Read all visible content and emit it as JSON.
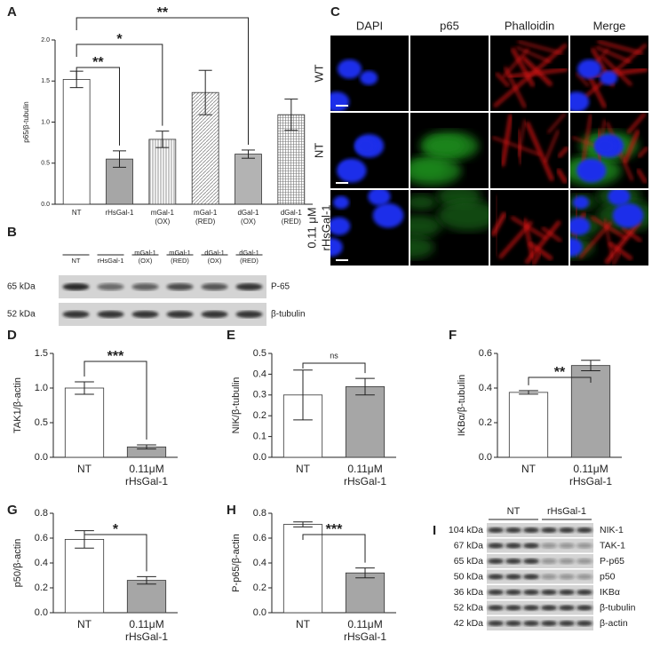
{
  "chart_data": [
    {
      "type": "bar",
      "label": "A",
      "y_label": "p65/β-tubulin",
      "categories": [
        [
          "NT"
        ],
        [
          "rHsGal-1"
        ],
        [
          "mGal-1",
          "(OX)"
        ],
        [
          "mGal-1",
          "(RED)"
        ],
        [
          "dGal-1",
          "(OX)"
        ],
        [
          "dGal-1",
          "(RED)"
        ]
      ],
      "values": [
        1.52,
        0.55,
        0.79,
        1.36,
        0.61,
        1.09
      ],
      "errors": [
        0.1,
        0.1,
        0.1,
        0.27,
        0.05,
        0.19
      ],
      "colors": [
        "#ffffff",
        "#a6a6a6",
        "#ffffff",
        "#ffffff",
        "#b3b3b3",
        "#ffffff"
      ],
      "patterns": [
        "none",
        "none",
        "vertical",
        "diagonal",
        "none",
        "grid"
      ],
      "ylim": [
        0,
        2.0
      ],
      "yticks": [
        {
          "value": 0,
          "label": "0.0"
        },
        0.5,
        {
          "value": 1,
          "label": "1.0"
        },
        1.5,
        {
          "value": 2,
          "label": "2.0"
        }
      ],
      "annotations": [
        {
          "text": "**",
          "between": [
            0,
            1
          ]
        },
        {
          "text": "*",
          "between": [
            0,
            2
          ]
        },
        {
          "text": "**",
          "between": [
            0,
            4
          ]
        }
      ]
    },
    {
      "type": "bar",
      "label": "D",
      "y_label": "TAK1/β-actin",
      "categories": [
        [
          "NT"
        ],
        [
          "0.11μM",
          "rHsGal-1"
        ]
      ],
      "values": [
        1.0,
        0.15
      ],
      "errors": [
        0.09,
        0.03
      ],
      "colors": [
        "#ffffff",
        "#a6a6a6"
      ],
      "patterns": [
        "none",
        "none"
      ],
      "ylim": [
        0,
        1.5
      ],
      "yticks": [
        {
          "value": 0,
          "label": "0.0"
        },
        0.5,
        {
          "value": 1,
          "label": "1.0"
        },
        1.5
      ],
      "annotations": [
        {
          "text": "***",
          "between": [
            0,
            1
          ]
        }
      ]
    },
    {
      "type": "bar",
      "label": "E",
      "y_label": "NIK/β-tubulin",
      "categories": [
        [
          "NT"
        ],
        [
          "0.11μM",
          "rHsGal-1"
        ]
      ],
      "values": [
        0.3,
        0.34
      ],
      "errors": [
        0.12,
        0.04
      ],
      "colors": [
        "#ffffff",
        "#a6a6a6"
      ],
      "patterns": [
        "none",
        "none"
      ],
      "ylim": [
        0,
        0.5
      ],
      "yticks": [
        {
          "value": 0,
          "label": "0.0"
        },
        0.1,
        0.2,
        0.3,
        0.4,
        0.5
      ],
      "annotations": [
        {
          "text": "ns",
          "between": [
            0,
            1
          ]
        }
      ]
    },
    {
      "type": "bar",
      "label": "F",
      "y_label": "IKBα/β-tubulin",
      "categories": [
        [
          "NT"
        ],
        [
          "0.11μM",
          "rHsGal-1"
        ]
      ],
      "values": [
        0.375,
        0.53
      ],
      "errors": [
        0.01,
        0.03
      ],
      "colors": [
        "#ffffff",
        "#a6a6a6"
      ],
      "patterns": [
        "none",
        "none"
      ],
      "ylim": [
        0,
        0.6
      ],
      "yticks": [
        {
          "value": 0,
          "label": "0.0"
        },
        0.2,
        0.4,
        0.6
      ],
      "annotations": [
        {
          "text": "**",
          "between": [
            0,
            1
          ]
        }
      ]
    },
    {
      "type": "bar",
      "label": "G",
      "y_label": "p50/β-actin",
      "categories": [
        [
          "NT"
        ],
        [
          "0.11μM",
          "rHsGal-1"
        ]
      ],
      "values": [
        0.59,
        0.26
      ],
      "errors": [
        0.07,
        0.03
      ],
      "colors": [
        "#ffffff",
        "#a6a6a6"
      ],
      "patterns": [
        "none",
        "none"
      ],
      "ylim": [
        0,
        0.8
      ],
      "yticks": [
        {
          "value": 0,
          "label": "0.0"
        },
        0.2,
        0.4,
        0.6,
        0.8
      ],
      "annotations": [
        {
          "text": "*",
          "between": [
            0,
            1
          ]
        }
      ]
    },
    {
      "type": "bar",
      "label": "H",
      "y_label": "P-p65/β-actin",
      "categories": [
        [
          "NT"
        ],
        [
          "0.11μM",
          "rHsGal-1"
        ]
      ],
      "values": [
        0.71,
        0.32
      ],
      "errors": [
        0.02,
        0.04
      ],
      "colors": [
        "#ffffff",
        "#a6a6a6"
      ],
      "patterns": [
        "none",
        "none"
      ],
      "ylim": [
        0,
        0.8
      ],
      "yticks": [
        {
          "value": 0,
          "label": "0.0"
        },
        0.2,
        0.4,
        0.6,
        0.8
      ],
      "annotations": [
        {
          "text": "***",
          "between": [
            0,
            1
          ]
        }
      ]
    }
  ],
  "blot_b": {
    "label": "B",
    "lanes": [
      [
        "NT"
      ],
      [
        "rHsGal-1"
      ],
      [
        "mGal-1",
        "(OX)"
      ],
      [
        "mGal-1",
        "(RED)"
      ],
      [
        "dGal-1",
        "(OX)"
      ],
      [
        "dGal-1",
        "(RED)"
      ]
    ],
    "rows": [
      {
        "size": "65 kDa",
        "protein": "P-65"
      },
      {
        "size": "52 kDa",
        "protein": "β-tubulin"
      }
    ]
  },
  "microscopy_c": {
    "label": "C",
    "columns": [
      "DAPI",
      "p65",
      "Phalloidin",
      "Merge"
    ],
    "rows": [
      [
        "WT"
      ],
      [
        "NT"
      ],
      [
        "0.11 μM",
        "rHsGal-1"
      ]
    ]
  },
  "blot_i": {
    "label": "I",
    "groups": [
      "NT",
      "rHsGal-1"
    ],
    "rows": [
      {
        "size": "104 kDa",
        "protein": "NIK-1"
      },
      {
        "size": "67 kDa",
        "protein": "TAK-1"
      },
      {
        "size": "65 kDa",
        "protein": "P-p65"
      },
      {
        "size": "50 kDa",
        "protein": "p50"
      },
      {
        "size": "36 kDa",
        "protein": "IKBα"
      },
      {
        "size": "52 kDa",
        "protein": "β-tubulin"
      },
      {
        "size": "42 kDa",
        "protein": "β-actin"
      }
    ]
  }
}
